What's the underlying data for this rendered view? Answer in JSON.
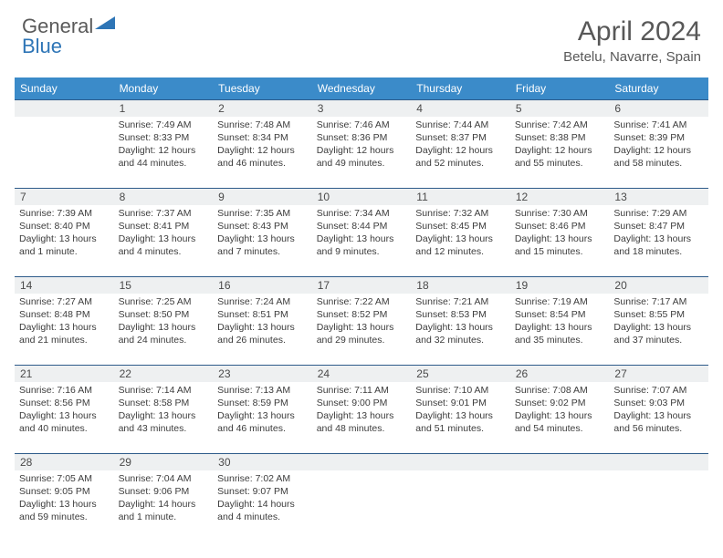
{
  "logo": {
    "part1": "General",
    "part2": "Blue",
    "text_color": "#5a5a5a",
    "accent_color": "#2e75b6"
  },
  "title": "April 2024",
  "location": "Betelu, Navarre, Spain",
  "colors": {
    "header_bg": "#3b8bc9",
    "header_text": "#ffffff",
    "daynum_bg": "#eef0f1",
    "daynum_border": "#2e5b8a",
    "body_text": "#3c3c3c"
  },
  "day_names": [
    "Sunday",
    "Monday",
    "Tuesday",
    "Wednesday",
    "Thursday",
    "Friday",
    "Saturday"
  ],
  "weeks": [
    {
      "nums": [
        "",
        "1",
        "2",
        "3",
        "4",
        "5",
        "6"
      ],
      "cells": [
        null,
        {
          "sr": "Sunrise: 7:49 AM",
          "ss": "Sunset: 8:33 PM",
          "d1": "Daylight: 12 hours",
          "d2": "and 44 minutes."
        },
        {
          "sr": "Sunrise: 7:48 AM",
          "ss": "Sunset: 8:34 PM",
          "d1": "Daylight: 12 hours",
          "d2": "and 46 minutes."
        },
        {
          "sr": "Sunrise: 7:46 AM",
          "ss": "Sunset: 8:36 PM",
          "d1": "Daylight: 12 hours",
          "d2": "and 49 minutes."
        },
        {
          "sr": "Sunrise: 7:44 AM",
          "ss": "Sunset: 8:37 PM",
          "d1": "Daylight: 12 hours",
          "d2": "and 52 minutes."
        },
        {
          "sr": "Sunrise: 7:42 AM",
          "ss": "Sunset: 8:38 PM",
          "d1": "Daylight: 12 hours",
          "d2": "and 55 minutes."
        },
        {
          "sr": "Sunrise: 7:41 AM",
          "ss": "Sunset: 8:39 PM",
          "d1": "Daylight: 12 hours",
          "d2": "and 58 minutes."
        }
      ]
    },
    {
      "nums": [
        "7",
        "8",
        "9",
        "10",
        "11",
        "12",
        "13"
      ],
      "cells": [
        {
          "sr": "Sunrise: 7:39 AM",
          "ss": "Sunset: 8:40 PM",
          "d1": "Daylight: 13 hours",
          "d2": "and 1 minute."
        },
        {
          "sr": "Sunrise: 7:37 AM",
          "ss": "Sunset: 8:41 PM",
          "d1": "Daylight: 13 hours",
          "d2": "and 4 minutes."
        },
        {
          "sr": "Sunrise: 7:35 AM",
          "ss": "Sunset: 8:43 PM",
          "d1": "Daylight: 13 hours",
          "d2": "and 7 minutes."
        },
        {
          "sr": "Sunrise: 7:34 AM",
          "ss": "Sunset: 8:44 PM",
          "d1": "Daylight: 13 hours",
          "d2": "and 9 minutes."
        },
        {
          "sr": "Sunrise: 7:32 AM",
          "ss": "Sunset: 8:45 PM",
          "d1": "Daylight: 13 hours",
          "d2": "and 12 minutes."
        },
        {
          "sr": "Sunrise: 7:30 AM",
          "ss": "Sunset: 8:46 PM",
          "d1": "Daylight: 13 hours",
          "d2": "and 15 minutes."
        },
        {
          "sr": "Sunrise: 7:29 AM",
          "ss": "Sunset: 8:47 PM",
          "d1": "Daylight: 13 hours",
          "d2": "and 18 minutes."
        }
      ]
    },
    {
      "nums": [
        "14",
        "15",
        "16",
        "17",
        "18",
        "19",
        "20"
      ],
      "cells": [
        {
          "sr": "Sunrise: 7:27 AM",
          "ss": "Sunset: 8:48 PM",
          "d1": "Daylight: 13 hours",
          "d2": "and 21 minutes."
        },
        {
          "sr": "Sunrise: 7:25 AM",
          "ss": "Sunset: 8:50 PM",
          "d1": "Daylight: 13 hours",
          "d2": "and 24 minutes."
        },
        {
          "sr": "Sunrise: 7:24 AM",
          "ss": "Sunset: 8:51 PM",
          "d1": "Daylight: 13 hours",
          "d2": "and 26 minutes."
        },
        {
          "sr": "Sunrise: 7:22 AM",
          "ss": "Sunset: 8:52 PM",
          "d1": "Daylight: 13 hours",
          "d2": "and 29 minutes."
        },
        {
          "sr": "Sunrise: 7:21 AM",
          "ss": "Sunset: 8:53 PM",
          "d1": "Daylight: 13 hours",
          "d2": "and 32 minutes."
        },
        {
          "sr": "Sunrise: 7:19 AM",
          "ss": "Sunset: 8:54 PM",
          "d1": "Daylight: 13 hours",
          "d2": "and 35 minutes."
        },
        {
          "sr": "Sunrise: 7:17 AM",
          "ss": "Sunset: 8:55 PM",
          "d1": "Daylight: 13 hours",
          "d2": "and 37 minutes."
        }
      ]
    },
    {
      "nums": [
        "21",
        "22",
        "23",
        "24",
        "25",
        "26",
        "27"
      ],
      "cells": [
        {
          "sr": "Sunrise: 7:16 AM",
          "ss": "Sunset: 8:56 PM",
          "d1": "Daylight: 13 hours",
          "d2": "and 40 minutes."
        },
        {
          "sr": "Sunrise: 7:14 AM",
          "ss": "Sunset: 8:58 PM",
          "d1": "Daylight: 13 hours",
          "d2": "and 43 minutes."
        },
        {
          "sr": "Sunrise: 7:13 AM",
          "ss": "Sunset: 8:59 PM",
          "d1": "Daylight: 13 hours",
          "d2": "and 46 minutes."
        },
        {
          "sr": "Sunrise: 7:11 AM",
          "ss": "Sunset: 9:00 PM",
          "d1": "Daylight: 13 hours",
          "d2": "and 48 minutes."
        },
        {
          "sr": "Sunrise: 7:10 AM",
          "ss": "Sunset: 9:01 PM",
          "d1": "Daylight: 13 hours",
          "d2": "and 51 minutes."
        },
        {
          "sr": "Sunrise: 7:08 AM",
          "ss": "Sunset: 9:02 PM",
          "d1": "Daylight: 13 hours",
          "d2": "and 54 minutes."
        },
        {
          "sr": "Sunrise: 7:07 AM",
          "ss": "Sunset: 9:03 PM",
          "d1": "Daylight: 13 hours",
          "d2": "and 56 minutes."
        }
      ]
    },
    {
      "nums": [
        "28",
        "29",
        "30",
        "",
        "",
        "",
        ""
      ],
      "cells": [
        {
          "sr": "Sunrise: 7:05 AM",
          "ss": "Sunset: 9:05 PM",
          "d1": "Daylight: 13 hours",
          "d2": "and 59 minutes."
        },
        {
          "sr": "Sunrise: 7:04 AM",
          "ss": "Sunset: 9:06 PM",
          "d1": "Daylight: 14 hours",
          "d2": "and 1 minute."
        },
        {
          "sr": "Sunrise: 7:02 AM",
          "ss": "Sunset: 9:07 PM",
          "d1": "Daylight: 14 hours",
          "d2": "and 4 minutes."
        },
        null,
        null,
        null,
        null
      ]
    }
  ]
}
